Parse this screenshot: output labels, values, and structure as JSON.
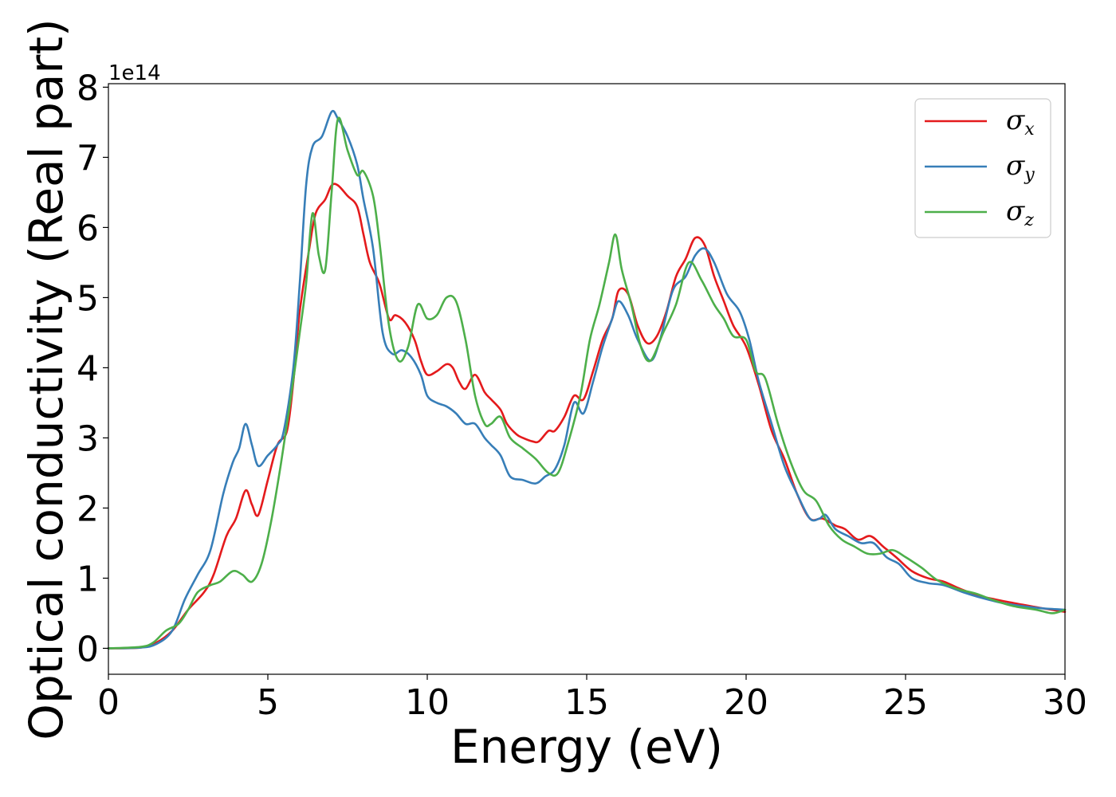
{
  "chart_data": {
    "type": "line",
    "title": "",
    "xlabel": "Energy (eV)",
    "ylabel": "Optical conductivity (Real part)",
    "y_offset_label": "1e14",
    "xlim": [
      0,
      30
    ],
    "ylim": [
      -0.37,
      8.05
    ],
    "x_ticks": [
      0,
      5,
      10,
      15,
      20,
      25,
      30
    ],
    "y_ticks": [
      0,
      1,
      2,
      3,
      4,
      5,
      6,
      7,
      8
    ],
    "grid": false,
    "legend_position": "top-right",
    "series": [
      {
        "name": "σx",
        "symbol": "σ",
        "subscript": "x",
        "color": "#e41a1c",
        "points": [
          [
            0,
            0
          ],
          [
            1,
            0.01
          ],
          [
            1.5,
            0.08
          ],
          [
            2,
            0.25
          ],
          [
            2.5,
            0.55
          ],
          [
            3,
            0.8
          ],
          [
            3.3,
            1.05
          ],
          [
            3.7,
            1.6
          ],
          [
            4,
            1.85
          ],
          [
            4.3,
            2.25
          ],
          [
            4.5,
            2.05
          ],
          [
            4.7,
            1.9
          ],
          [
            5,
            2.4
          ],
          [
            5.3,
            2.9
          ],
          [
            5.6,
            3.1
          ],
          [
            5.8,
            3.8
          ],
          [
            6,
            4.8
          ],
          [
            6.3,
            5.7
          ],
          [
            6.5,
            6.2
          ],
          [
            6.8,
            6.4
          ],
          [
            7,
            6.6
          ],
          [
            7.2,
            6.6
          ],
          [
            7.5,
            6.45
          ],
          [
            7.8,
            6.3
          ],
          [
            8,
            5.9
          ],
          [
            8.2,
            5.5
          ],
          [
            8.5,
            5.2
          ],
          [
            8.8,
            4.7
          ],
          [
            9,
            4.75
          ],
          [
            9.3,
            4.65
          ],
          [
            9.6,
            4.4
          ],
          [
            9.8,
            4.1
          ],
          [
            10,
            3.9
          ],
          [
            10.3,
            3.95
          ],
          [
            10.6,
            4.05
          ],
          [
            10.8,
            4.0
          ],
          [
            11,
            3.8
          ],
          [
            11.2,
            3.7
          ],
          [
            11.5,
            3.9
          ],
          [
            11.8,
            3.65
          ],
          [
            12,
            3.55
          ],
          [
            12.3,
            3.4
          ],
          [
            12.5,
            3.2
          ],
          [
            12.8,
            3.05
          ],
          [
            13,
            3.0
          ],
          [
            13.3,
            2.95
          ],
          [
            13.5,
            2.95
          ],
          [
            13.8,
            3.1
          ],
          [
            14,
            3.1
          ],
          [
            14.3,
            3.3
          ],
          [
            14.6,
            3.6
          ],
          [
            14.9,
            3.55
          ],
          [
            15.2,
            3.95
          ],
          [
            15.5,
            4.4
          ],
          [
            15.8,
            4.7
          ],
          [
            16,
            5.1
          ],
          [
            16.3,
            5.05
          ],
          [
            16.6,
            4.6
          ],
          [
            16.9,
            4.35
          ],
          [
            17.2,
            4.45
          ],
          [
            17.5,
            4.8
          ],
          [
            17.8,
            5.3
          ],
          [
            18.1,
            5.55
          ],
          [
            18.4,
            5.85
          ],
          [
            18.7,
            5.75
          ],
          [
            19,
            5.3
          ],
          [
            19.3,
            4.95
          ],
          [
            19.6,
            4.6
          ],
          [
            20,
            4.3
          ],
          [
            20.4,
            3.75
          ],
          [
            20.8,
            3.1
          ],
          [
            21.2,
            2.7
          ],
          [
            21.6,
            2.2
          ],
          [
            22,
            1.85
          ],
          [
            22.4,
            1.85
          ],
          [
            22.8,
            1.75
          ],
          [
            23.1,
            1.7
          ],
          [
            23.5,
            1.55
          ],
          [
            23.9,
            1.6
          ],
          [
            24.3,
            1.45
          ],
          [
            24.7,
            1.3
          ],
          [
            25.2,
            1.1
          ],
          [
            25.7,
            1.0
          ],
          [
            26.2,
            0.95
          ],
          [
            26.7,
            0.85
          ],
          [
            27.3,
            0.75
          ],
          [
            28,
            0.68
          ],
          [
            28.7,
            0.62
          ],
          [
            29.3,
            0.57
          ],
          [
            30,
            0.52
          ]
        ]
      },
      {
        "name": "σy",
        "symbol": "σ",
        "subscript": "y",
        "color": "#377eb8",
        "points": [
          [
            0,
            0
          ],
          [
            1,
            0.01
          ],
          [
            1.5,
            0.06
          ],
          [
            2,
            0.25
          ],
          [
            2.4,
            0.7
          ],
          [
            2.8,
            1.05
          ],
          [
            3.2,
            1.4
          ],
          [
            3.6,
            2.2
          ],
          [
            3.9,
            2.65
          ],
          [
            4.1,
            2.85
          ],
          [
            4.3,
            3.2
          ],
          [
            4.5,
            2.9
          ],
          [
            4.7,
            2.6
          ],
          [
            5,
            2.75
          ],
          [
            5.3,
            2.9
          ],
          [
            5.5,
            3.1
          ],
          [
            5.8,
            4.0
          ],
          [
            6,
            5.2
          ],
          [
            6.2,
            6.6
          ],
          [
            6.4,
            7.15
          ],
          [
            6.7,
            7.3
          ],
          [
            7,
            7.65
          ],
          [
            7.2,
            7.55
          ],
          [
            7.5,
            7.3
          ],
          [
            7.8,
            6.9
          ],
          [
            8,
            6.4
          ],
          [
            8.3,
            5.7
          ],
          [
            8.6,
            4.5
          ],
          [
            8.9,
            4.2
          ],
          [
            9.2,
            4.25
          ],
          [
            9.5,
            4.15
          ],
          [
            9.8,
            3.9
          ],
          [
            10,
            3.6
          ],
          [
            10.3,
            3.5
          ],
          [
            10.6,
            3.45
          ],
          [
            10.9,
            3.35
          ],
          [
            11.2,
            3.2
          ],
          [
            11.5,
            3.2
          ],
          [
            11.8,
            3.0
          ],
          [
            12,
            2.9
          ],
          [
            12.3,
            2.75
          ],
          [
            12.6,
            2.45
          ],
          [
            13,
            2.4
          ],
          [
            13.4,
            2.35
          ],
          [
            13.7,
            2.45
          ],
          [
            14,
            2.55
          ],
          [
            14.3,
            2.9
          ],
          [
            14.6,
            3.5
          ],
          [
            14.9,
            3.35
          ],
          [
            15.2,
            3.8
          ],
          [
            15.5,
            4.3
          ],
          [
            15.8,
            4.7
          ],
          [
            16,
            4.95
          ],
          [
            16.3,
            4.75
          ],
          [
            16.6,
            4.4
          ],
          [
            17,
            4.1
          ],
          [
            17.3,
            4.4
          ],
          [
            17.7,
            5.1
          ],
          [
            18.1,
            5.3
          ],
          [
            18.4,
            5.6
          ],
          [
            18.7,
            5.7
          ],
          [
            19,
            5.5
          ],
          [
            19.4,
            5.05
          ],
          [
            19.8,
            4.8
          ],
          [
            20.1,
            4.4
          ],
          [
            20.4,
            3.8
          ],
          [
            20.8,
            3.2
          ],
          [
            21.2,
            2.6
          ],
          [
            21.6,
            2.2
          ],
          [
            22,
            1.85
          ],
          [
            22.3,
            1.85
          ],
          [
            22.5,
            1.9
          ],
          [
            22.8,
            1.7
          ],
          [
            23.2,
            1.6
          ],
          [
            23.6,
            1.5
          ],
          [
            24,
            1.5
          ],
          [
            24.4,
            1.3
          ],
          [
            24.8,
            1.2
          ],
          [
            25.2,
            1.0
          ],
          [
            25.7,
            0.93
          ],
          [
            26.2,
            0.9
          ],
          [
            26.8,
            0.8
          ],
          [
            27.3,
            0.73
          ],
          [
            28,
            0.65
          ],
          [
            28.7,
            0.6
          ],
          [
            29.3,
            0.57
          ],
          [
            30,
            0.55
          ]
        ]
      },
      {
        "name": "σz",
        "symbol": "σ",
        "subscript": "z",
        "color": "#4daf4a",
        "points": [
          [
            0,
            0
          ],
          [
            1,
            0.02
          ],
          [
            1.4,
            0.08
          ],
          [
            1.8,
            0.25
          ],
          [
            2.2,
            0.35
          ],
          [
            2.5,
            0.55
          ],
          [
            2.8,
            0.8
          ],
          [
            3.2,
            0.9
          ],
          [
            3.5,
            0.95
          ],
          [
            3.9,
            1.1
          ],
          [
            4.2,
            1.05
          ],
          [
            4.5,
            0.95
          ],
          [
            4.8,
            1.2
          ],
          [
            5.1,
            1.8
          ],
          [
            5.4,
            2.6
          ],
          [
            5.7,
            3.5
          ],
          [
            6,
            4.5
          ],
          [
            6.2,
            5.2
          ],
          [
            6.4,
            6.2
          ],
          [
            6.6,
            5.6
          ],
          [
            6.8,
            5.4
          ],
          [
            7,
            6.5
          ],
          [
            7.2,
            7.55
          ],
          [
            7.5,
            7.1
          ],
          [
            7.8,
            6.75
          ],
          [
            8,
            6.8
          ],
          [
            8.3,
            6.45
          ],
          [
            8.5,
            5.8
          ],
          [
            8.8,
            4.6
          ],
          [
            9.1,
            4.1
          ],
          [
            9.4,
            4.3
          ],
          [
            9.7,
            4.9
          ],
          [
            10,
            4.7
          ],
          [
            10.3,
            4.75
          ],
          [
            10.6,
            5.0
          ],
          [
            10.9,
            4.95
          ],
          [
            11.2,
            4.4
          ],
          [
            11.5,
            3.6
          ],
          [
            11.8,
            3.2
          ],
          [
            12,
            3.2
          ],
          [
            12.3,
            3.3
          ],
          [
            12.6,
            3.0
          ],
          [
            13,
            2.85
          ],
          [
            13.4,
            2.7
          ],
          [
            13.8,
            2.5
          ],
          [
            14.1,
            2.5
          ],
          [
            14.4,
            2.9
          ],
          [
            14.8,
            3.6
          ],
          [
            15.1,
            4.4
          ],
          [
            15.4,
            4.9
          ],
          [
            15.7,
            5.5
          ],
          [
            15.9,
            5.9
          ],
          [
            16.1,
            5.4
          ],
          [
            16.4,
            4.9
          ],
          [
            16.7,
            4.3
          ],
          [
            17,
            4.1
          ],
          [
            17.4,
            4.5
          ],
          [
            17.8,
            4.9
          ],
          [
            18.2,
            5.5
          ],
          [
            18.6,
            5.25
          ],
          [
            19,
            4.9
          ],
          [
            19.3,
            4.7
          ],
          [
            19.6,
            4.45
          ],
          [
            20,
            4.4
          ],
          [
            20.3,
            3.95
          ],
          [
            20.6,
            3.85
          ],
          [
            21,
            3.2
          ],
          [
            21.4,
            2.65
          ],
          [
            21.8,
            2.25
          ],
          [
            22.2,
            2.1
          ],
          [
            22.6,
            1.75
          ],
          [
            23,
            1.55
          ],
          [
            23.4,
            1.45
          ],
          [
            23.8,
            1.35
          ],
          [
            24.2,
            1.35
          ],
          [
            24.6,
            1.4
          ],
          [
            25,
            1.3
          ],
          [
            25.5,
            1.15
          ],
          [
            26,
            0.97
          ],
          [
            26.6,
            0.85
          ],
          [
            27.2,
            0.78
          ],
          [
            27.8,
            0.68
          ],
          [
            28.4,
            0.6
          ],
          [
            29.1,
            0.55
          ],
          [
            29.6,
            0.5
          ],
          [
            30,
            0.55
          ]
        ]
      }
    ]
  }
}
